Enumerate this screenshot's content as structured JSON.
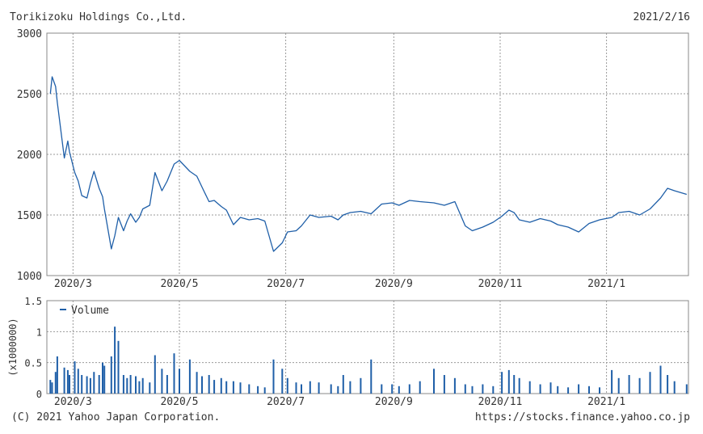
{
  "header": {
    "company": "Torikizoku Holdings Co.,Ltd.",
    "date": "2021/2/16"
  },
  "footer": {
    "copyright": "(C) 2021 Yahoo Japan Corporation.",
    "source": "https://stocks.finance.yahoo.co.jp"
  },
  "colors": {
    "line": "#1f5fa8",
    "bar": "#1f5fa8",
    "grid": "#9a9a9a",
    "frame": "#888888"
  },
  "chart_data": [
    {
      "type": "line",
      "name": "price",
      "x_ticks": [
        "2020/3",
        "2020/5",
        "2020/7",
        "2020/9",
        "2020/11",
        "2021/1"
      ],
      "y_ticks": [
        "1000",
        "1500",
        "2000",
        "2500",
        "3000"
      ],
      "ylim": [
        1000,
        3000
      ],
      "grid": true,
      "x": [
        "2020-02-17",
        "2020-02-18",
        "2020-02-20",
        "2020-02-21",
        "2020-02-25",
        "2020-02-27",
        "2020-02-28",
        "2020-03-02",
        "2020-03-04",
        "2020-03-06",
        "2020-03-09",
        "2020-03-11",
        "2020-03-13",
        "2020-03-16",
        "2020-03-18",
        "2020-03-19",
        "2020-03-23",
        "2020-03-25",
        "2020-03-27",
        "2020-03-30",
        "2020-04-01",
        "2020-04-03",
        "2020-04-06",
        "2020-04-08",
        "2020-04-10",
        "2020-04-14",
        "2020-04-17",
        "2020-04-21",
        "2020-04-24",
        "2020-04-28",
        "2020-05-01",
        "2020-05-07",
        "2020-05-11",
        "2020-05-14",
        "2020-05-18",
        "2020-05-21",
        "2020-05-25",
        "2020-05-28",
        "2020-06-01",
        "2020-06-05",
        "2020-06-10",
        "2020-06-15",
        "2020-06-19",
        "2020-06-24",
        "2020-06-29",
        "2020-07-02",
        "2020-07-07",
        "2020-07-10",
        "2020-07-15",
        "2020-07-20",
        "2020-07-27",
        "2020-07-31",
        "2020-08-03",
        "2020-08-07",
        "2020-08-13",
        "2020-08-19",
        "2020-08-25",
        "2020-08-31",
        "2020-09-04",
        "2020-09-10",
        "2020-09-16",
        "2020-09-24",
        "2020-09-30",
        "2020-10-06",
        "2020-10-12",
        "2020-10-16",
        "2020-10-22",
        "2020-10-28",
        "2020-11-02",
        "2020-11-06",
        "2020-11-09",
        "2020-11-12",
        "2020-11-18",
        "2020-11-24",
        "2020-11-30",
        "2020-12-04",
        "2020-12-10",
        "2020-12-16",
        "2020-12-22",
        "2020-12-28",
        "2021-01-04",
        "2021-01-08",
        "2021-01-14",
        "2021-01-20",
        "2021-01-26",
        "2021-02-01",
        "2021-02-05",
        "2021-02-09",
        "2021-02-16"
      ],
      "y": [
        2500,
        2640,
        2560,
        2430,
        1970,
        2110,
        2020,
        1850,
        1780,
        1660,
        1640,
        1760,
        1860,
        1720,
        1650,
        1550,
        1220,
        1330,
        1480,
        1370,
        1450,
        1510,
        1440,
        1480,
        1550,
        1580,
        1850,
        1700,
        1780,
        1920,
        1950,
        1860,
        1820,
        1730,
        1610,
        1620,
        1570,
        1540,
        1420,
        1480,
        1460,
        1470,
        1450,
        1200,
        1270,
        1360,
        1370,
        1410,
        1500,
        1480,
        1490,
        1460,
        1500,
        1520,
        1530,
        1510,
        1590,
        1600,
        1580,
        1620,
        1610,
        1600,
        1580,
        1610,
        1410,
        1370,
        1400,
        1440,
        1490,
        1540,
        1520,
        1460,
        1440,
        1470,
        1450,
        1420,
        1400,
        1360,
        1430,
        1460,
        1480,
        1520,
        1530,
        1500,
        1550,
        1640,
        1720,
        1700,
        1670
      ]
    },
    {
      "type": "bar",
      "name": "volume",
      "legend": "Volume",
      "legend_position": "top-left",
      "ylabel": "(x1000000)",
      "x_ticks": [
        "2020/3",
        "2020/5",
        "2020/7",
        "2020/9",
        "2020/11",
        "2021/1"
      ],
      "y_ticks": [
        "0",
        "0.5",
        "1",
        "1.5"
      ],
      "ylim": [
        0,
        1.5
      ],
      "grid": true,
      "x": [
        "2020-02-17",
        "2020-02-18",
        "2020-02-20",
        "2020-02-21",
        "2020-02-25",
        "2020-02-27",
        "2020-02-28",
        "2020-03-02",
        "2020-03-04",
        "2020-03-06",
        "2020-03-09",
        "2020-03-11",
        "2020-03-13",
        "2020-03-16",
        "2020-03-18",
        "2020-03-19",
        "2020-03-23",
        "2020-03-25",
        "2020-03-27",
        "2020-03-30",
        "2020-04-01",
        "2020-04-03",
        "2020-04-06",
        "2020-04-08",
        "2020-04-10",
        "2020-04-14",
        "2020-04-17",
        "2020-04-21",
        "2020-04-24",
        "2020-04-28",
        "2020-05-01",
        "2020-05-07",
        "2020-05-11",
        "2020-05-14",
        "2020-05-18",
        "2020-05-21",
        "2020-05-25",
        "2020-05-28",
        "2020-06-01",
        "2020-06-05",
        "2020-06-10",
        "2020-06-15",
        "2020-06-19",
        "2020-06-24",
        "2020-06-29",
        "2020-07-02",
        "2020-07-07",
        "2020-07-10",
        "2020-07-15",
        "2020-07-20",
        "2020-07-27",
        "2020-07-31",
        "2020-08-03",
        "2020-08-07",
        "2020-08-13",
        "2020-08-19",
        "2020-08-25",
        "2020-08-31",
        "2020-09-04",
        "2020-09-10",
        "2020-09-16",
        "2020-09-24",
        "2020-09-30",
        "2020-10-06",
        "2020-10-12",
        "2020-10-16",
        "2020-10-22",
        "2020-10-28",
        "2020-11-02",
        "2020-11-06",
        "2020-11-09",
        "2020-11-12",
        "2020-11-18",
        "2020-11-24",
        "2020-11-30",
        "2020-12-04",
        "2020-12-10",
        "2020-12-16",
        "2020-12-22",
        "2020-12-28",
        "2021-01-04",
        "2021-01-08",
        "2021-01-14",
        "2021-01-20",
        "2021-01-26",
        "2021-02-01",
        "2021-02-05",
        "2021-02-09",
        "2021-02-16"
      ],
      "values": [
        0.22,
        0.18,
        0.35,
        0.6,
        0.42,
        0.38,
        0.3,
        0.52,
        0.4,
        0.3,
        0.28,
        0.25,
        0.35,
        0.3,
        0.5,
        0.45,
        0.6,
        1.08,
        0.85,
        0.3,
        0.25,
        0.3,
        0.28,
        0.2,
        0.25,
        0.18,
        0.62,
        0.4,
        0.3,
        0.65,
        0.4,
        0.55,
        0.35,
        0.28,
        0.3,
        0.22,
        0.25,
        0.2,
        0.2,
        0.18,
        0.15,
        0.12,
        0.1,
        0.55,
        0.4,
        0.25,
        0.18,
        0.15,
        0.2,
        0.18,
        0.15,
        0.12,
        0.3,
        0.2,
        0.25,
        0.55,
        0.15,
        0.15,
        0.12,
        0.15,
        0.2,
        0.4,
        0.3,
        0.25,
        0.15,
        0.12,
        0.15,
        0.12,
        0.35,
        0.38,
        0.3,
        0.25,
        0.2,
        0.15,
        0.18,
        0.12,
        0.1,
        0.15,
        0.12,
        0.1,
        0.38,
        0.25,
        0.3,
        0.25,
        0.35,
        0.45,
        0.3,
        0.2,
        0.15
      ]
    }
  ]
}
